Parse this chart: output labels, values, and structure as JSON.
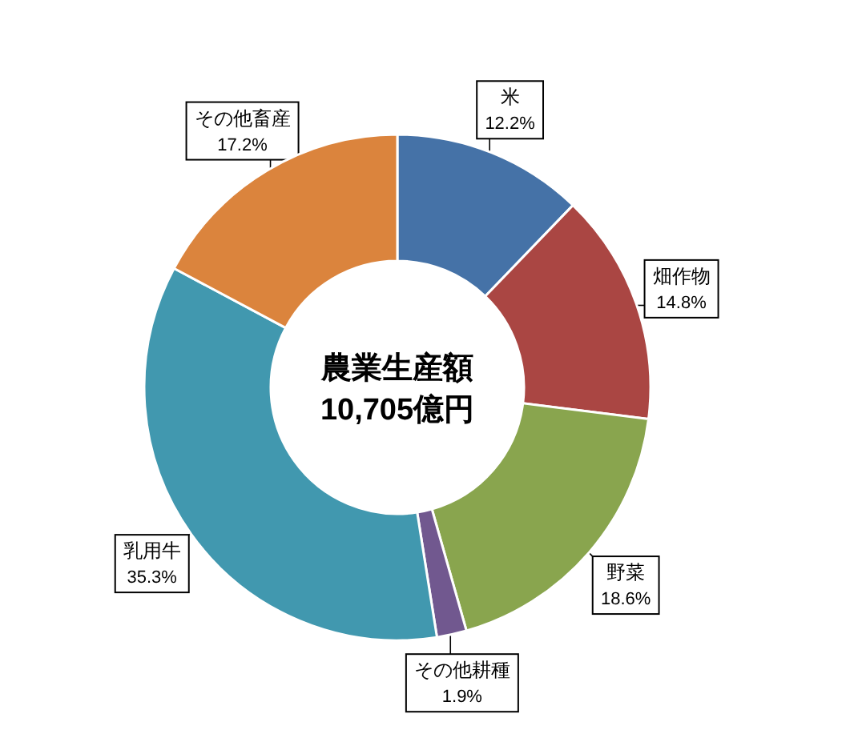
{
  "chart_data": {
    "type": "donut",
    "title": "農業生産額",
    "subtitle": "10,705億円",
    "categories": [
      "米",
      "畑作物",
      "野菜",
      "その他耕種",
      "乳用牛",
      "その他畜産"
    ],
    "values": [
      12.2,
      14.8,
      18.6,
      1.9,
      35.3,
      17.2
    ],
    "value_labels": [
      "12.2%",
      "14.8%",
      "18.6%",
      "1.9%",
      "35.3%",
      "17.2%"
    ],
    "colors": [
      "#4572a7",
      "#aa4643",
      "#89a54e",
      "#71588f",
      "#4198af",
      "#db843d"
    ]
  }
}
